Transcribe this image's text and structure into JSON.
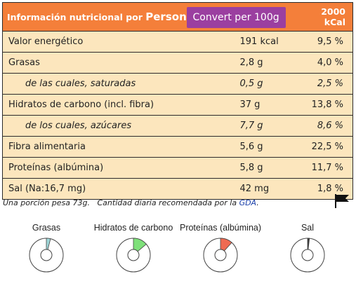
{
  "header": {
    "title_prefix": "Información nutricional por ",
    "title_unit": "Person",
    "convert_label": "Convert per 100g",
    "reference_label": "2000 kCal"
  },
  "rows": [
    {
      "label": "Valor energético",
      "amount": "191 kcal",
      "percent": "9,5 %",
      "sub": false
    },
    {
      "label": "Grasas",
      "amount": "2,8 g",
      "percent": "4,0 %",
      "sub": false
    },
    {
      "label": "de las cuales, saturadas",
      "amount": "0,5 g",
      "percent": "2,5 %",
      "sub": true
    },
    {
      "label": "Hidratos de carbono (incl. fibra)",
      "amount": "37 g",
      "percent": "13,8 %",
      "sub": false
    },
    {
      "label": "de los cuales, azúcares",
      "amount": "7,7 g",
      "percent": "8,6 %",
      "sub": true
    },
    {
      "label": "Fibra alimentaria",
      "amount": "5,6 g",
      "percent": "22,5 %",
      "sub": false
    },
    {
      "label": "Proteínas (albúmina)",
      "amount": "5,8 g",
      "percent": "11,7 %",
      "sub": false
    },
    {
      "label": "Sal (Na:16,7 mg)",
      "amount": "42 mg",
      "percent": "1,8 %",
      "sub": false
    }
  ],
  "footnote": {
    "portion": "Una porción pesa 73g.",
    "daily_prefix": "Cantidad diaria recomendada por la ",
    "gda_link": "GDA",
    "suffix": "."
  },
  "flag_icon": "flag-icon",
  "pies": [
    {
      "label": "Grasas",
      "percent": 4.0,
      "color": "#9fd6d8"
    },
    {
      "label": "Hidratos de carbono",
      "percent": 13.8,
      "color": "#7ee07a"
    },
    {
      "label": "Proteínas (albúmina)",
      "percent": 11.7,
      "color": "#ef6a52"
    },
    {
      "label": "Sal",
      "percent": 1.8,
      "color": "#3a3a3a"
    }
  ]
}
